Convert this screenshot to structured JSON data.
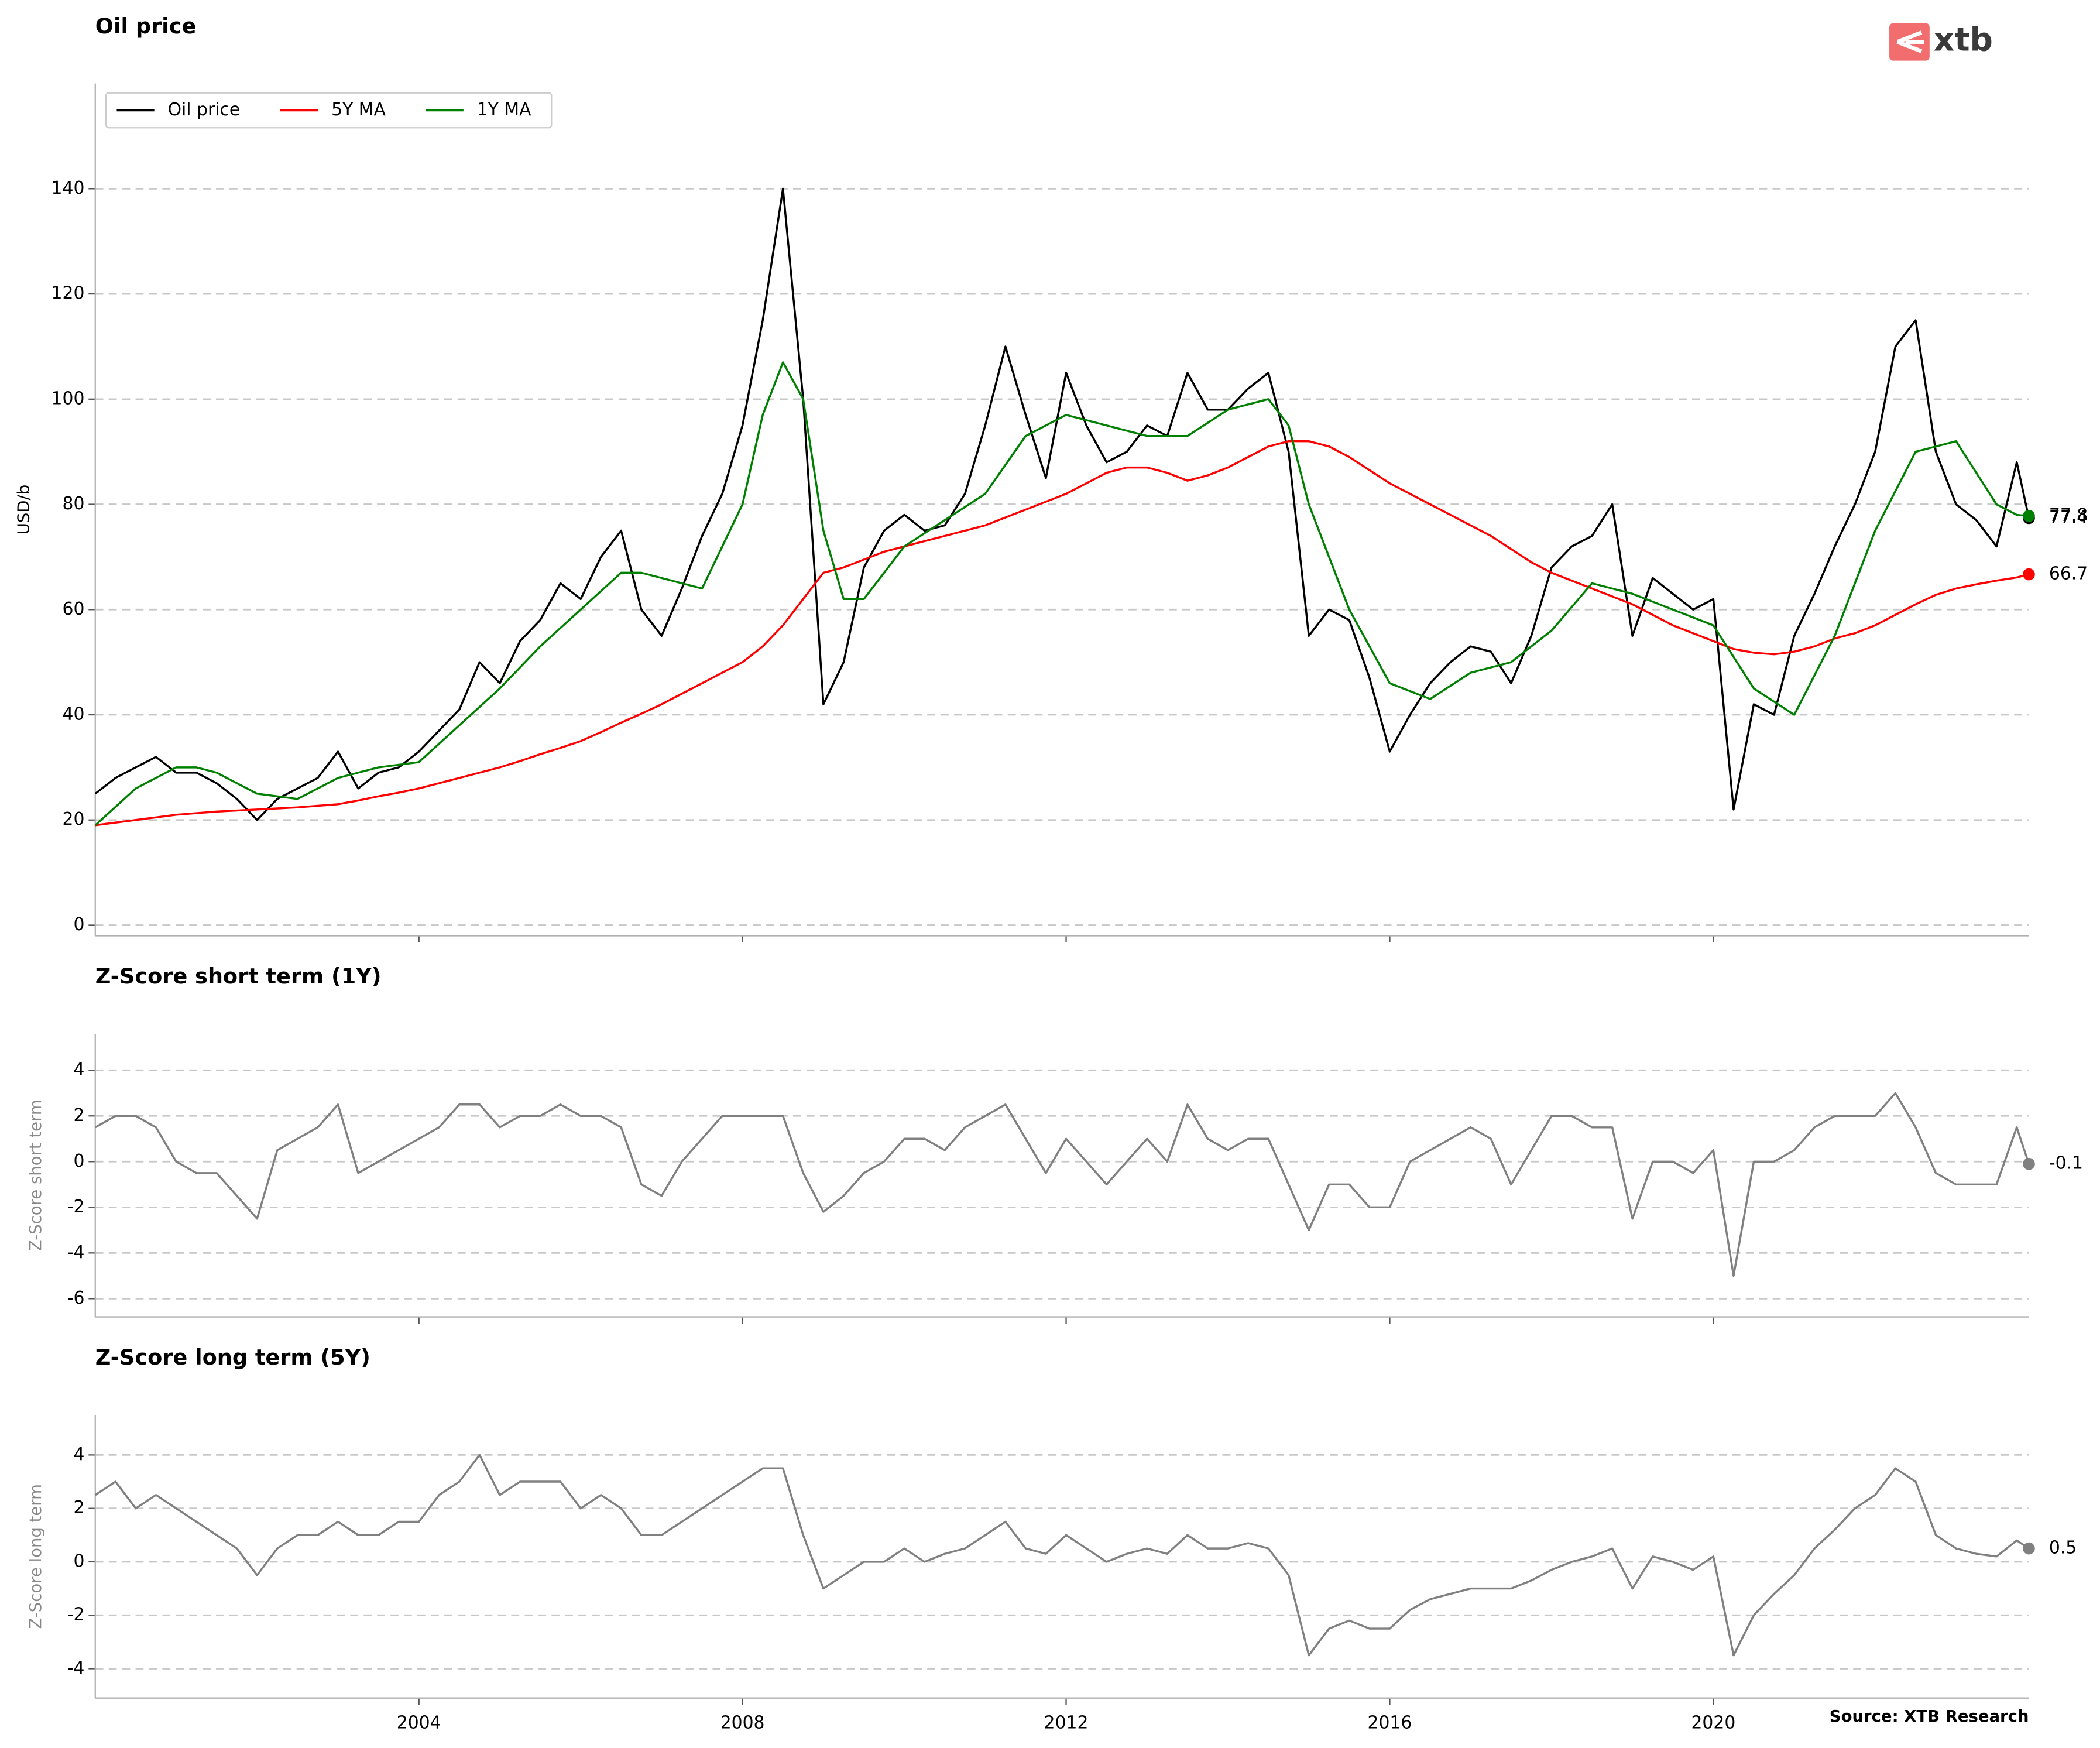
{
  "chart_data": {
    "type": "line",
    "source": "Source: XTB Research",
    "logo": "xtb",
    "xlim": [
      2000,
      2023.9
    ],
    "xticks": [
      2004,
      2008,
      2012,
      2016,
      2020
    ],
    "x": [
      2000,
      2000.25,
      2000.5,
      2000.75,
      2001,
      2001.25,
      2001.5,
      2001.75,
      2002,
      2002.25,
      2002.5,
      2002.75,
      2003,
      2003.25,
      2003.5,
      2003.75,
      2004,
      2004.25,
      2004.5,
      2004.75,
      2005,
      2005.25,
      2005.5,
      2005.75,
      2006,
      2006.25,
      2006.5,
      2006.75,
      2007,
      2007.25,
      2007.5,
      2007.75,
      2008,
      2008.25,
      2008.5,
      2008.75,
      2009,
      2009.25,
      2009.5,
      2009.75,
      2010,
      2010.25,
      2010.5,
      2010.75,
      2011,
      2011.25,
      2011.5,
      2011.75,
      2012,
      2012.25,
      2012.5,
      2012.75,
      2013,
      2013.25,
      2013.5,
      2013.75,
      2014,
      2014.25,
      2014.5,
      2014.75,
      2015,
      2015.25,
      2015.5,
      2015.75,
      2016,
      2016.25,
      2016.5,
      2016.75,
      2017,
      2017.25,
      2017.5,
      2017.75,
      2018,
      2018.25,
      2018.5,
      2018.75,
      2019,
      2019.25,
      2019.5,
      2019.75,
      2020,
      2020.25,
      2020.5,
      2020.75,
      2021,
      2021.25,
      2021.5,
      2021.75,
      2022,
      2022.25,
      2022.5,
      2022.75,
      2023,
      2023.25,
      2023.5,
      2023.75,
      2023.9
    ],
    "panels": [
      {
        "title": "Oil price",
        "ylabel": "USD/b",
        "ylim": [
          -2,
          160
        ],
        "yticks": [
          0,
          20,
          40,
          60,
          80,
          100,
          120,
          140
        ],
        "grid": true,
        "legend": "upper left",
        "series": [
          {
            "name": "Oil price",
            "color": "#000000",
            "values": [
              25,
              28,
              30,
              32,
              29,
              29,
              27,
              24,
              20,
              24,
              26,
              28,
              33,
              26,
              29,
              30,
              33,
              37,
              41,
              50,
              46,
              54,
              58,
              65,
              62,
              70,
              75,
              60,
              55,
              64,
              74,
              82,
              95,
              115,
              140,
              100,
              42,
              50,
              68,
              75,
              78,
              75,
              76,
              82,
              95,
              110,
              97,
              85,
              105,
              95,
              88,
              90,
              95,
              93,
              105,
              98,
              98,
              102,
              105,
              90,
              55,
              60,
              58,
              47,
              33,
              40,
              46,
              50,
              53,
              52,
              46,
              55,
              68,
              72,
              74,
              80,
              55,
              66,
              63,
              60,
              62,
              22,
              42,
              40,
              55,
              63,
              72,
              80,
              90,
              110,
              115,
              90,
              80,
              77,
              72,
              88,
              77.4
            ]
          },
          {
            "name": "5Y MA",
            "color": "#ff0000",
            "values": [
              19,
              19.5,
              20,
              20.5,
              21,
              21.3,
              21.6,
              21.8,
              22,
              22.2,
              22.4,
              22.7,
              23,
              23.7,
              24.5,
              25.2,
              26,
              27,
              28,
              29,
              30,
              31.2,
              32.5,
              33.7,
              35,
              36.7,
              38.5,
              40.2,
              42,
              44,
              46,
              48,
              50,
              53,
              57,
              62,
              67,
              68,
              69.5,
              71,
              72,
              73,
              74,
              75,
              76,
              77.5,
              79,
              80.5,
              82,
              84,
              86,
              87,
              87,
              86,
              84.5,
              85.5,
              87,
              89,
              91,
              92,
              92,
              91,
              89,
              86.5,
              84,
              82,
              80,
              78,
              76,
              74,
              71.5,
              69,
              67,
              65.5,
              64,
              62.5,
              61,
              59,
              57,
              55.5,
              54,
              52.5,
              51.8,
              51.5,
              52,
              53,
              54.5,
              55.5,
              57,
              59,
              61,
              62.8,
              64,
              64.8,
              65.5,
              66.1,
              66.7
            ]
          },
          {
            "name": "1Y MA",
            "color": "#008000",
            "values": [
              19,
              22.5,
              26,
              28,
              30,
              30,
              29,
              27,
              25,
              24.5,
              24,
              26,
              28,
              29,
              30,
              30.5,
              31,
              34.5,
              38,
              41.5,
              45,
              49,
              53,
              56.5,
              60,
              63.5,
              67,
              67,
              66,
              65,
              64,
              72,
              80,
              97,
              107,
              100,
              75,
              62,
              62,
              67,
              72,
              74.5,
              77,
              79.5,
              82,
              87.5,
              93,
              95,
              97,
              96,
              95,
              94,
              93,
              93,
              93,
              95.5,
              98,
              99,
              100,
              95,
              80,
              70,
              60,
              53,
              46,
              44.5,
              43,
              45.5,
              48,
              49,
              50,
              53,
              56,
              60.5,
              65,
              64,
              63,
              61.5,
              60,
              58.5,
              57,
              51,
              45,
              42.5,
              40,
              47.5,
              55,
              65,
              75,
              82.5,
              90,
              91,
              92,
              86,
              80,
              78,
              77.8
            ]
          }
        ]
      },
      {
        "title": "Z-Score short term (1Y)",
        "ylabel": "Z-Score short term",
        "ylim": [
          -6.8,
          5.6
        ],
        "yticks": [
          -6,
          -4,
          -2,
          0,
          2,
          4
        ],
        "grid": true,
        "series": [
          {
            "color": "#808080",
            "values": [
              1.5,
              2,
              2,
              1.5,
              0,
              -0.5,
              -0.5,
              -1.5,
              -2.5,
              0.5,
              1,
              1.5,
              2.5,
              -0.5,
              0,
              0.5,
              1,
              1.5,
              2.5,
              2.5,
              1.5,
              2,
              2,
              2.5,
              2,
              2,
              1.5,
              -1,
              -1.5,
              0,
              1,
              2,
              2,
              2,
              2,
              -0.5,
              -2.2,
              -1.5,
              -0.5,
              0,
              1,
              1,
              0.5,
              1.5,
              2,
              2.5,
              1,
              -0.5,
              1,
              0,
              -1,
              0,
              1,
              0,
              2.5,
              1,
              0.5,
              1,
              1,
              -1,
              -3,
              -1,
              -1,
              -2,
              -2,
              0,
              0.5,
              1,
              1.5,
              1,
              -1,
              0.5,
              2,
              2,
              1.5,
              1.5,
              -2.5,
              0,
              0,
              -0.5,
              0.5,
              -5,
              0,
              0,
              0.5,
              1.5,
              2,
              2,
              2,
              3,
              1.5,
              -0.5,
              -1,
              -1,
              -1,
              1.5,
              -0.1
            ]
          }
        ]
      },
      {
        "title": "Z-Score long term (5Y)",
        "ylabel": "Z-Score long term",
        "ylim": [
          -5.1,
          5.5
        ],
        "yticks": [
          -4,
          -2,
          0,
          2,
          4
        ],
        "grid": true,
        "series": [
          {
            "color": "#808080",
            "values": [
              2.5,
              3,
              2,
              2.5,
              2,
              1.5,
              1,
              0.5,
              -0.5,
              0.5,
              1,
              1,
              1.5,
              1,
              1,
              1.5,
              1.5,
              2.5,
              3,
              4,
              2.5,
              3,
              3,
              3,
              2,
              2.5,
              2,
              1,
              1,
              1.5,
              2,
              2.5,
              3,
              3.5,
              3.5,
              1,
              -1,
              -0.5,
              0,
              0,
              0.5,
              0,
              0.3,
              0.5,
              1,
              1.5,
              0.5,
              0.3,
              1,
              0.5,
              0,
              0.3,
              0.5,
              0.3,
              1,
              0.5,
              0.5,
              0.7,
              0.5,
              -0.5,
              -3.5,
              -2.5,
              -2.2,
              -2.5,
              -2.5,
              -1.8,
              -1.4,
              -1.2,
              -1,
              -1,
              -1,
              -0.7,
              -0.3,
              0,
              0.2,
              0.5,
              -1,
              0.2,
              0,
              -0.3,
              0.2,
              -3.5,
              -2,
              -1.2,
              -0.5,
              0.5,
              1.2,
              2,
              2.5,
              3.5,
              3,
              1,
              0.5,
              0.3,
              0.2,
              0.8,
              0.5
            ]
          }
        ]
      }
    ]
  }
}
